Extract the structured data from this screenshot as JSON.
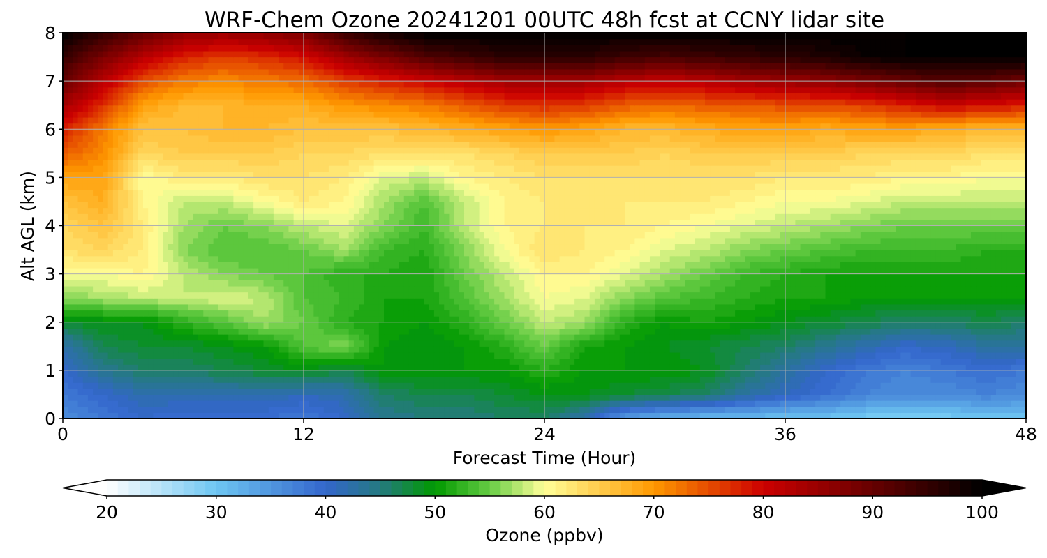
{
  "chart_data": [
    {
      "type": "heatmap",
      "title": "WRF-Chem Ozone  20241201 00UTC 48h fcst at CCNY lidar site",
      "xlabel": "Forecast Time (Hour)",
      "ylabel": "Alt AGL (km)",
      "xlim": [
        0,
        48
      ],
      "ylim": [
        0,
        8
      ],
      "xticks": [
        0,
        12,
        24,
        36,
        48
      ],
      "yticks": [
        0,
        1,
        2,
        3,
        4,
        5,
        6,
        7,
        8
      ],
      "grid": true,
      "x": [
        0,
        2,
        4,
        6,
        8,
        10,
        12,
        14,
        16,
        18,
        20,
        22,
        24,
        26,
        28,
        30,
        32,
        34,
        36,
        38,
        40,
        42,
        44,
        46,
        48
      ],
      "y": [
        0,
        0.5,
        1,
        1.5,
        2,
        2.5,
        3,
        3.5,
        4,
        4.5,
        5,
        5.5,
        6,
        6.5,
        7,
        7.5,
        8
      ],
      "z_units": "ppbv",
      "z": [
        [
          36,
          38,
          40,
          39,
          39,
          39,
          38,
          40,
          44,
          45,
          45,
          46,
          46,
          42,
          34,
          32,
          31,
          31,
          30,
          30,
          29,
          29,
          29,
          30,
          30
        ],
        [
          38,
          40,
          42,
          42,
          42,
          42,
          41,
          42,
          46,
          47,
          47,
          48,
          49,
          49,
          48,
          47,
          46,
          43,
          41,
          39,
          37,
          36,
          36,
          37,
          36
        ],
        [
          40,
          44,
          46,
          46,
          47,
          48,
          49,
          47,
          50,
          50,
          50,
          50,
          52,
          50,
          50,
          50,
          49,
          46,
          43,
          40,
          38,
          37,
          38,
          39,
          38
        ],
        [
          42,
          47,
          48,
          48,
          49,
          50,
          54,
          56,
          50,
          49,
          50,
          52,
          55,
          51,
          50,
          49,
          48,
          47,
          46,
          44,
          42,
          40,
          41,
          43,
          43
        ],
        [
          48,
          49,
          49,
          52,
          54,
          57,
          55,
          52,
          51,
          50,
          52,
          55,
          58,
          57,
          52,
          50,
          51,
          50,
          49,
          48,
          47,
          46,
          46,
          47,
          46
        ],
        [
          56,
          57,
          58,
          58,
          59,
          58,
          54,
          53,
          51,
          51,
          54,
          57,
          60,
          59,
          56,
          54,
          53,
          52,
          51,
          51,
          50,
          50,
          50,
          50,
          50
        ],
        [
          60,
          60,
          61,
          58,
          56,
          55,
          54,
          52,
          52,
          51,
          55,
          58,
          61,
          61,
          59,
          57,
          55,
          53,
          52,
          51,
          51,
          51,
          51,
          51,
          51
        ],
        [
          63,
          64,
          62,
          56,
          54,
          54,
          55,
          57,
          53,
          52,
          56,
          60,
          63,
          62,
          61,
          59,
          58,
          56,
          55,
          54,
          53,
          53,
          53,
          52,
          52
        ],
        [
          64,
          66,
          62,
          57,
          55,
          56,
          58,
          59,
          56,
          53,
          58,
          61,
          62,
          62,
          62,
          61,
          60,
          59,
          58,
          57,
          56,
          55,
          55,
          55,
          55
        ],
        [
          66,
          68,
          61,
          58,
          58,
          60,
          62,
          61,
          57,
          54,
          58,
          61,
          62,
          62,
          62,
          62,
          62,
          61,
          60,
          60,
          59,
          58,
          58,
          58,
          58
        ],
        [
          69,
          69,
          60,
          62,
          62,
          63,
          63,
          62,
          59,
          58,
          61,
          62,
          63,
          63,
          63,
          63,
          63,
          63,
          62,
          62,
          62,
          61,
          61,
          60,
          60
        ],
        [
          74,
          71,
          64,
          65,
          65,
          65,
          64,
          64,
          63,
          63,
          63,
          64,
          65,
          65,
          65,
          64,
          65,
          65,
          65,
          65,
          64,
          64,
          64,
          63,
          63
        ],
        [
          78,
          72,
          66,
          66,
          67,
          67,
          66,
          66,
          66,
          67,
          68,
          69,
          70,
          69,
          67,
          67,
          68,
          69,
          69,
          68,
          69,
          69,
          68,
          67,
          67
        ],
        [
          84,
          77,
          69,
          67,
          67,
          68,
          68,
          70,
          71,
          72,
          74,
          76,
          77,
          76,
          74,
          73,
          74,
          74,
          75,
          75,
          76,
          78,
          80,
          79,
          78
        ],
        [
          90,
          82,
          75,
          72,
          71,
          72,
          73,
          76,
          78,
          80,
          82,
          84,
          84,
          84,
          82,
          81,
          82,
          84,
          85,
          86,
          88,
          90,
          92,
          91,
          89
        ],
        [
          95,
          88,
          82,
          78,
          76,
          77,
          79,
          84,
          88,
          92,
          94,
          96,
          96,
          96,
          94,
          93,
          94,
          95,
          96,
          97,
          99,
          100,
          100,
          100,
          100
        ],
        [
          100,
          95,
          90,
          86,
          85,
          86,
          88,
          94,
          98,
          100,
          100,
          100,
          100,
          100,
          100,
          100,
          100,
          100,
          100,
          100,
          100,
          100,
          100,
          100,
          100
        ]
      ],
      "colorbar": {
        "label": "Ozone  (ppbv)",
        "min": 20,
        "max": 100,
        "step": 1,
        "ticks": [
          20,
          30,
          40,
          50,
          60,
          70,
          80,
          90,
          100
        ],
        "extend": "both",
        "color_stops": [
          [
            20,
            "#ffffff"
          ],
          [
            30,
            "#6ec6f2"
          ],
          [
            40,
            "#3366cc"
          ],
          [
            45,
            "#257a80"
          ],
          [
            50,
            "#009900"
          ],
          [
            55,
            "#66cc44"
          ],
          [
            60,
            "#ffff99"
          ],
          [
            70,
            "#ff9900"
          ],
          [
            80,
            "#cc0000"
          ],
          [
            90,
            "#660000"
          ],
          [
            100,
            "#000000"
          ]
        ]
      }
    }
  ]
}
